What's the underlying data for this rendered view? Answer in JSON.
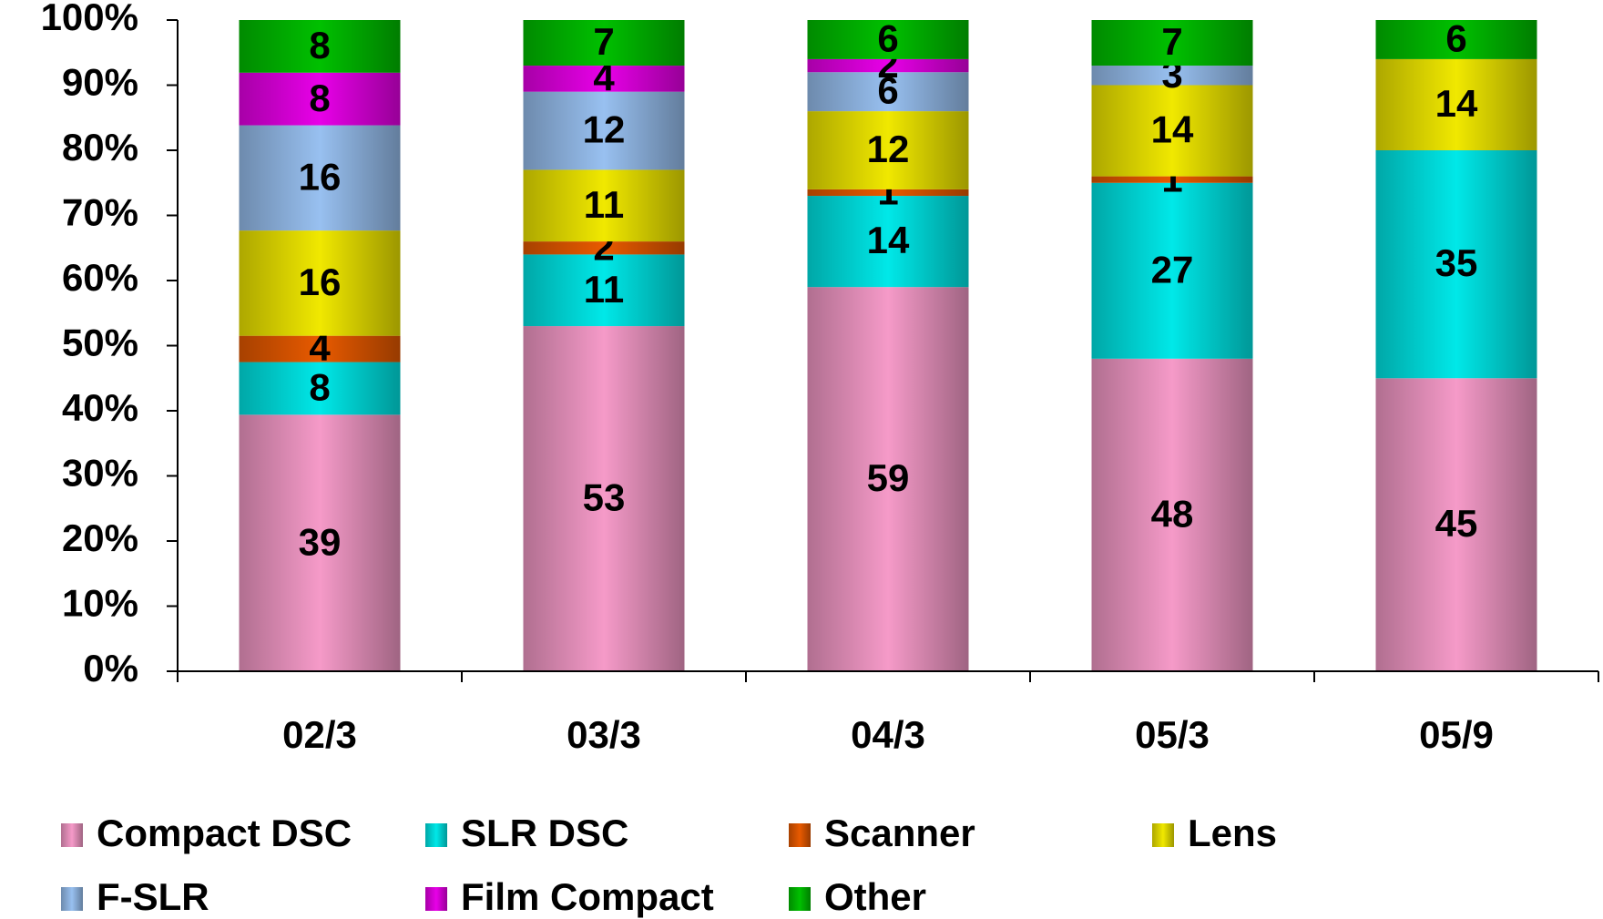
{
  "chart_data": {
    "type": "bar",
    "stacking": "percent",
    "categories": [
      "02/3",
      "03/3",
      "04/3",
      "05/3",
      "05/9"
    ],
    "series": [
      {
        "name": "Compact DSC",
        "color": "#f59ac8",
        "values": [
          39,
          53,
          59,
          48,
          45
        ]
      },
      {
        "name": "SLR DSC",
        "color": "#00e8e8",
        "values": [
          8,
          11,
          14,
          27,
          35
        ]
      },
      {
        "name": "Scanner",
        "color": "#e85a00",
        "values": [
          4,
          2,
          1,
          1,
          null
        ]
      },
      {
        "name": "Lens",
        "color": "#f0e800",
        "values": [
          16,
          11,
          12,
          14,
          14
        ]
      },
      {
        "name": "F-SLR",
        "color": "#98c0f0",
        "values": [
          16,
          12,
          6,
          3,
          null
        ]
      },
      {
        "name": "Film Compact",
        "color": "#e800e8",
        "values": [
          8,
          4,
          2,
          null,
          null
        ]
      },
      {
        "name": "Other",
        "color": "#00c000",
        "values": [
          8,
          7,
          6,
          7,
          6
        ]
      }
    ],
    "ylim": [
      0,
      100
    ],
    "yticks": [
      {
        "value": 0,
        "label": "0%"
      },
      {
        "value": 10,
        "label": "10%"
      },
      {
        "value": 20,
        "label": "20%"
      },
      {
        "value": 30,
        "label": "30%"
      },
      {
        "value": 40,
        "label": "40%"
      },
      {
        "value": 50,
        "label": "50%"
      },
      {
        "value": 60,
        "label": "60%"
      },
      {
        "value": 70,
        "label": "70%"
      },
      {
        "value": 80,
        "label": "80%"
      },
      {
        "value": 90,
        "label": "90%"
      },
      {
        "value": 100,
        "label": "100%"
      }
    ],
    "grid": false,
    "legend": "bottom"
  }
}
